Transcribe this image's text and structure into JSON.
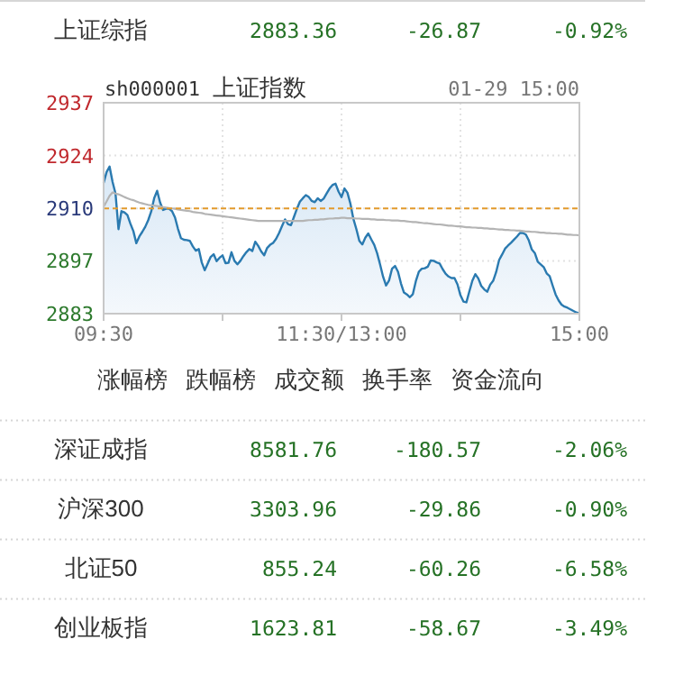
{
  "chart_data": [
    {
      "type": "other",
      "categories": [
        "上证综指"
      ],
      "series": [
        {
          "color": "#267226",
          "values": [
            2883.36
          ],
          "value_labels": [
            "2883.36"
          ]
        },
        {
          "color": "#267226",
          "values": [
            -26.87
          ],
          "value_labels": [
            "-26.87"
          ]
        },
        {
          "color": "#267226",
          "values": [
            -0.92
          ],
          "value_labels": [
            "-0.92%"
          ]
        }
      ]
    },
    {
      "type": "line",
      "title": "上证指数",
      "annotations": [
        "sh000001",
        "01-29 15:00"
      ],
      "categories": [
        "09:30",
        null,
        null,
        null,
        null,
        null,
        null,
        null,
        null,
        null,
        null,
        null,
        null,
        null,
        null,
        null,
        null,
        null,
        null,
        null,
        null,
        null,
        null,
        null,
        null,
        null,
        null,
        null,
        null,
        null,
        null,
        null,
        null,
        null,
        null,
        null,
        null,
        null,
        null,
        null,
        null,
        null,
        null,
        null,
        null,
        null,
        null,
        null,
        null,
        null,
        null,
        null,
        null,
        null,
        null,
        null,
        null,
        null,
        null,
        null,
        null,
        null,
        null,
        null,
        null,
        null,
        null,
        null,
        null,
        null,
        null,
        null,
        null,
        null,
        null,
        null,
        null,
        null,
        null,
        null,
        "11:30/13:00",
        null,
        null,
        null,
        null,
        null,
        null,
        null,
        null,
        null,
        null,
        null,
        null,
        null,
        null,
        null,
        null,
        null,
        null,
        null,
        null,
        null,
        null,
        null,
        null,
        null,
        null,
        null,
        null,
        null,
        null,
        null,
        null,
        null,
        null,
        null,
        null,
        null,
        null,
        null,
        null,
        null,
        null,
        null,
        null,
        null,
        null,
        null,
        null,
        null,
        null,
        null,
        null,
        null,
        null,
        null,
        null,
        null,
        null,
        null,
        null,
        null,
        null,
        null,
        null,
        null,
        null,
        null,
        null,
        null,
        null,
        null,
        null,
        null,
        null,
        null,
        null,
        null,
        null,
        null,
        "15:00"
      ],
      "series": [
        {
          "type": "area",
          "color": "#2a7ab0",
          "values": [
            2916.7,
            2919.5,
            2920.9,
            2917.0,
            2914.0,
            2904.9,
            2909.5,
            2909.2,
            2908.5,
            2906.3,
            2904.4,
            2901.3,
            2903.0,
            2904.2,
            2905.5,
            2907.2,
            2909.4,
            2912.8,
            2914.7,
            2911.7,
            2909.8,
            2910.1,
            2910.1,
            2909.5,
            2907.9,
            2905.0,
            2902.6,
            2902.2,
            2902.1,
            2901.9,
            2900.5,
            2899.4,
            2899.8,
            2896.4,
            2894.4,
            2896.1,
            2897.8,
            2898.5,
            2896.7,
            2897.6,
            2898.2,
            2896.2,
            2896.3,
            2899.0,
            2896.8,
            2895.9,
            2896.8,
            2898.0,
            2899.0,
            2899.8,
            2899.3,
            2901.7,
            2900.6,
            2899.2,
            2898.2,
            2900.1,
            2900.9,
            2901.4,
            2902.4,
            2903.9,
            2905.7,
            2907.4,
            2906.2,
            2905.9,
            2908.0,
            2910.1,
            2911.9,
            2912.8,
            2913.6,
            2913.1,
            2912.1,
            2911.8,
            2912.8,
            2912.1,
            2912.7,
            2914.0,
            2915.3,
            2916.2,
            2916.5,
            2914.5,
            2913.1,
            2915.3,
            2914.2,
            2911.4,
            2907.5,
            2904.9,
            2901.9,
            2901.0,
            2902.7,
            2903.8,
            2902.3,
            2900.9,
            2898.7,
            2895.8,
            2892.7,
            2890.5,
            2891.8,
            2894.8,
            2895.5,
            2894.0,
            2891.0,
            2888.7,
            2888.2,
            2887.5,
            2888.3,
            2891.6,
            2894.0,
            2894.8,
            2894.9,
            2895.3,
            2896.9,
            2896.8,
            2896.4,
            2896.1,
            2894.7,
            2893.5,
            2892.8,
            2892.4,
            2892.4,
            2890.8,
            2888.0,
            2886.4,
            2886.2,
            2889.0,
            2891.7,
            2893.4,
            2892.3,
            2890.4,
            2889.5,
            2888.9,
            2890.7,
            2891.7,
            2893.9,
            2897.0,
            2898.4,
            2899.9,
            2900.7,
            2901.4,
            2902.2,
            2903.0,
            2903.9,
            2903.9,
            2903.5,
            2902.0,
            2899.7,
            2898.8,
            2896.6,
            2895.9,
            2895.2,
            2893.6,
            2892.9,
            2890.5,
            2888.2,
            2886.7,
            2885.6,
            2885.1,
            2884.8,
            2884.4,
            2884.0,
            2883.6,
            2883.4
          ]
        },
        {
          "type": "line",
          "color": "#b4b4b4",
          "values": [
            2910.6,
            2912.0,
            2913.4,
            2914.3,
            2914.0,
            2913.8,
            2913.5,
            2913.1,
            2912.8,
            2912.5,
            2912.3,
            2912.0,
            2911.7,
            2911.5,
            2911.3,
            2911.1,
            2911.0,
            2910.9,
            2910.8,
            2910.7,
            2910.5,
            2910.4,
            2910.3,
            2910.2,
            2910.1,
            2909.9,
            2909.8,
            2909.7,
            2909.6,
            2909.5,
            2909.3,
            2909.2,
            2909.1,
            2909.0,
            2908.8,
            2908.7,
            2908.6,
            2908.5,
            2908.4,
            2908.3,
            2908.2,
            2908.1,
            2908.0,
            2907.9,
            2907.8,
            2907.7,
            2907.6,
            2907.5,
            2907.4,
            2907.3,
            2907.2,
            2907.1,
            2907.0,
            2907.0,
            2907.0,
            2907.0,
            2907.0,
            2907.0,
            2907.0,
            2907.0,
            2907.0,
            2907.0,
            2907.0,
            2907.0,
            2907.0,
            2907.0,
            2907.0,
            2907.0,
            2907.1,
            2907.2,
            2907.2,
            2907.3,
            2907.3,
            2907.4,
            2907.4,
            2907.5,
            2907.6,
            2907.6,
            2907.7,
            2907.7,
            2907.8,
            2907.8,
            2907.7,
            2907.7,
            2907.7,
            2907.6,
            2907.6,
            2907.5,
            2907.5,
            2907.5,
            2907.4,
            2907.4,
            2907.3,
            2907.3,
            2907.3,
            2907.2,
            2907.2,
            2907.1,
            2907.1,
            2907.1,
            2907.0,
            2907.0,
            2906.9,
            2906.8,
            2906.7,
            2906.7,
            2906.6,
            2906.5,
            2906.4,
            2906.4,
            2906.3,
            2906.2,
            2906.1,
            2906.1,
            2906.0,
            2905.9,
            2905.8,
            2905.8,
            2905.7,
            2905.6,
            2905.6,
            2905.5,
            2905.4,
            2905.4,
            2905.3,
            2905.3,
            2905.2,
            2905.2,
            2905.1,
            2905.1,
            2905.0,
            2905.0,
            2904.9,
            2904.8,
            2904.8,
            2904.7,
            2904.7,
            2904.6,
            2904.6,
            2904.5,
            2904.5,
            2904.4,
            2904.3,
            2904.3,
            2904.2,
            2904.2,
            2904.1,
            2904.0,
            2904.0,
            2903.9,
            2903.9,
            2903.8,
            2903.8,
            2903.7,
            2903.7,
            2903.6,
            2903.5,
            2903.5,
            2903.4,
            2903.4,
            2903.3
          ]
        }
      ],
      "ylim": [
        2883.3,
        2937.2
      ],
      "yticks": [
        {
          "value": 2883.3,
          "label": "2883"
        },
        {
          "value": 2896.8,
          "label": "2897"
        },
        {
          "value": 2910.2,
          "label": "2910"
        },
        {
          "value": 2923.7,
          "label": "2924"
        },
        {
          "value": 2937.2,
          "label": "2937"
        }
      ],
      "ref_lines": [
        {
          "axis": "y",
          "value": 2910.2,
          "color": "#e39a2c",
          "line_style": "dashed"
        }
      ],
      "grid": true
    },
    {
      "type": "other",
      "annotations": [
        "涨幅榜",
        "跌幅榜",
        "成交额",
        "换手率",
        "资金流向"
      ],
      "categories": [
        "深证成指",
        "沪深300",
        "北证50",
        "创业板指"
      ],
      "series": [
        {
          "color": "#267226",
          "values": [
            8581.76,
            3303.96,
            855.24,
            1623.81
          ],
          "value_labels": [
            "8581.76",
            "3303.96",
            "855.24",
            "1623.81"
          ]
        },
        {
          "color": "#267226",
          "values": [
            -180.57,
            -29.86,
            -60.26,
            -58.67
          ],
          "value_labels": [
            "-180.57",
            "-29.86",
            "-60.26",
            "-58.67"
          ]
        },
        {
          "color": "#267226",
          "values": [
            -2.06,
            -0.9,
            -6.58,
            -3.49
          ],
          "value_labels": [
            "-2.06%",
            "-0.90%",
            "-6.58%",
            "-3.49%"
          ]
        }
      ]
    }
  ]
}
